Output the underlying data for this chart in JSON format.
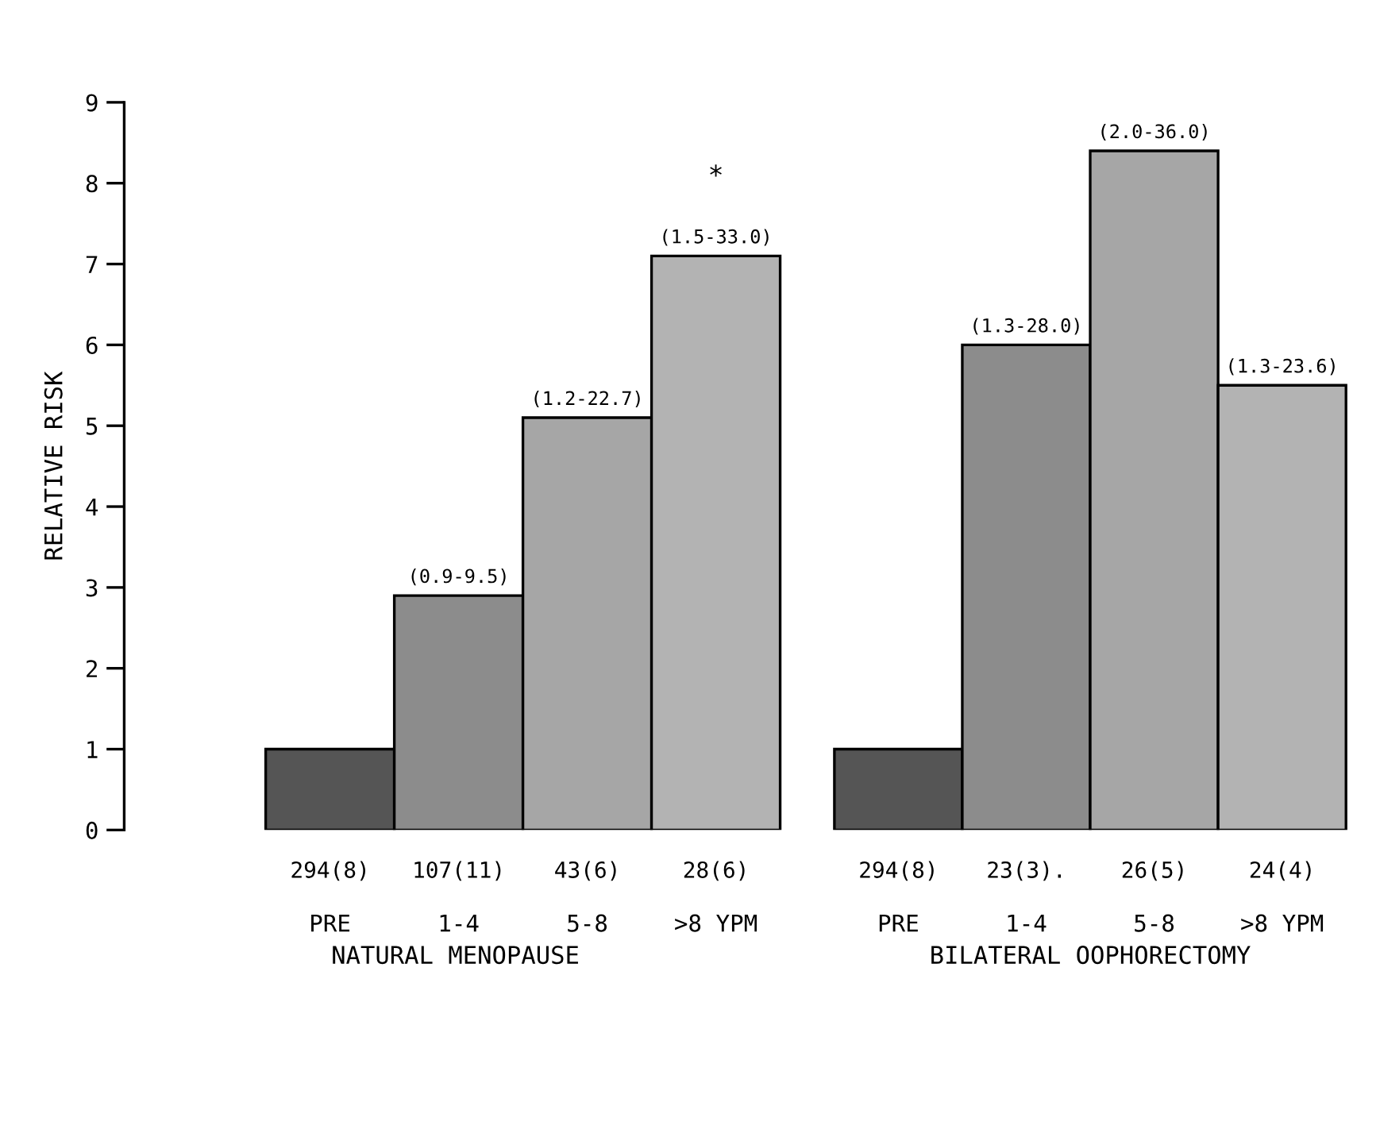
{
  "chart_data": [
    {
      "type": "bar",
      "xlabel": "NATURAL MENOPAUSE",
      "ylabel": "RELATIVE RISK",
      "categories": [
        "PRE",
        "1-4",
        "5-8",
        ">8 YPM"
      ],
      "values": [
        1.0,
        2.9,
        5.1,
        7.1
      ],
      "colors": [
        "#555555",
        "#8c8c8c",
        "#a6a6a6",
        "#b3b3b3"
      ],
      "ylim": [
        0,
        9
      ],
      "yticks": [
        0,
        1,
        2,
        3,
        4,
        5,
        6,
        7,
        8,
        9
      ],
      "annotations": [
        {
          "text": "(0.9-9.5)",
          "x": "1-4",
          "y": 2.9
        },
        {
          "text": "(1.2-22.7)",
          "x": "5-8",
          "y": 5.1
        },
        {
          "text": "(1.5-33.0)",
          "x": ">8 YPM",
          "y": 7.1
        },
        "294(8)",
        "107(11)",
        "43(6)",
        "28(6)",
        "*"
      ]
    },
    {
      "type": "bar",
      "xlabel": "BILATERAL OOPHORECTOMY",
      "categories": [
        "PRE",
        "1-4",
        "5-8",
        ">8 YPM"
      ],
      "values": [
        1.0,
        6.0,
        8.4,
        5.5
      ],
      "colors": [
        "#555555",
        "#8c8c8c",
        "#a6a6a6",
        "#b3b3b3"
      ],
      "ylim": [
        0,
        9
      ],
      "tick_labels": "x",
      "annotations": [
        {
          "text": "(1.3-28.0)",
          "x": "1-4",
          "y": 6.0
        },
        {
          "text": "(2.0-36.0)",
          "x": "5-8",
          "y": 8.4
        },
        {
          "text": "(1.3-23.6)",
          "x": ">8 YPM",
          "y": 5.5
        },
        "294(8)",
        "23(3).",
        "26(5)",
        "24(4)"
      ]
    }
  ]
}
